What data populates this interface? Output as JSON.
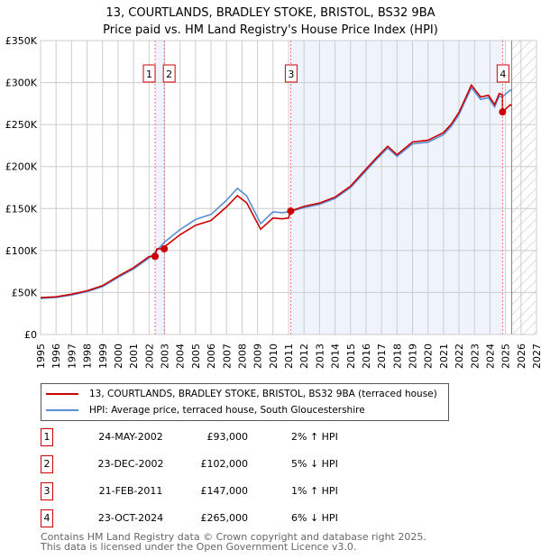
{
  "title": "13, COURTLANDS, BRADLEY STOKE, BRISTOL, BS32 9BA",
  "subtitle": "Price paid vs. HM Land Registry's House Price Index (HPI)",
  "chart_data": {
    "type": "line",
    "title": "13, COURTLANDS, BRADLEY STOKE, BRISTOL, BS32 9BA",
    "xlim": [
      1995,
      2027
    ],
    "ylim": [
      0,
      350000
    ],
    "yticks": [
      {
        "v": 0,
        "label": "£0"
      },
      {
        "v": 50000,
        "label": "£50K"
      },
      {
        "v": 100000,
        "label": "£100K"
      },
      {
        "v": 150000,
        "label": "£150K"
      },
      {
        "v": 200000,
        "label": "£200K"
      },
      {
        "v": 250000,
        "label": "£250K"
      },
      {
        "v": 300000,
        "label": "£300K"
      },
      {
        "v": 350000,
        "label": "£350K"
      }
    ],
    "xticks": [
      "1995",
      "1996",
      "1997",
      "1998",
      "1999",
      "2000",
      "2001",
      "2002",
      "2003",
      "2004",
      "2005",
      "2006",
      "2007",
      "2008",
      "2009",
      "2010",
      "2011",
      "2012",
      "2013",
      "2014",
      "2015",
      "2016",
      "2017",
      "2018",
      "2019",
      "2020",
      "2021",
      "2022",
      "2023",
      "2024",
      "2025",
      "2026",
      "2027"
    ],
    "colors": {
      "property": "#cc0000",
      "hpi": "#5b8fd4",
      "shade": "#eef3fc"
    },
    "hpi": [
      [
        1995,
        43000
      ],
      [
        1996,
        44000
      ],
      [
        1997,
        47000
      ],
      [
        1998,
        51000
      ],
      [
        1999,
        57000
      ],
      [
        2000,
        68000
      ],
      [
        2001,
        78000
      ],
      [
        2002,
        91000
      ],
      [
        2002.5,
        100000
      ],
      [
        2003,
        110000
      ],
      [
        2004,
        125000
      ],
      [
        2005,
        137000
      ],
      [
        2006,
        143000
      ],
      [
        2007,
        160000
      ],
      [
        2007.7,
        174000
      ],
      [
        2008.3,
        165000
      ],
      [
        2009.2,
        132000
      ],
      [
        2010,
        146000
      ],
      [
        2010.6,
        145000
      ],
      [
        2011,
        146000
      ],
      [
        2012,
        151000
      ],
      [
        2013,
        155000
      ],
      [
        2014,
        162000
      ],
      [
        2015,
        175000
      ],
      [
        2016,
        195000
      ],
      [
        2016.7,
        209000
      ],
      [
        2017.4,
        222000
      ],
      [
        2018,
        212000
      ],
      [
        2019,
        227000
      ],
      [
        2020,
        229000
      ],
      [
        2021,
        238000
      ],
      [
        2021.5,
        248000
      ],
      [
        2022,
        262000
      ],
      [
        2022.8,
        294000
      ],
      [
        2023.4,
        280000
      ],
      [
        2023.9,
        282000
      ],
      [
        2024.3,
        271000
      ],
      [
        2024.6,
        284000
      ],
      [
        2024.8,
        283000
      ],
      [
        2025.3,
        291000
      ],
      [
        2025.4,
        290000
      ]
    ],
    "property_factors": [
      [
        1995,
        1.02
      ],
      [
        2002.39,
        1.02
      ],
      [
        2002.98,
        0.95
      ],
      [
        2011.14,
        1.01
      ],
      [
        2024.81,
        0.94
      ]
    ],
    "sales": [
      {
        "n": "1",
        "year": 2002.39,
        "date": "24-MAY-2002",
        "price": 93000,
        "price_label": "£93,000",
        "hpi": "2% ↑ HPI"
      },
      {
        "n": "2",
        "year": 2002.98,
        "date": "23-DEC-2002",
        "price": 102000,
        "price_label": "£102,000",
        "hpi": "5% ↓ HPI"
      },
      {
        "n": "3",
        "year": 2011.14,
        "date": "21-FEB-2011",
        "price": 147000,
        "price_label": "£147,000",
        "hpi": "1% ↑ HPI"
      },
      {
        "n": "4",
        "year": 2024.81,
        "date": "23-OCT-2024",
        "price": 265000,
        "price_label": "£265,000",
        "hpi": "6% ↓ HPI"
      }
    ],
    "forecast_start": 2025.4,
    "legend": [
      "13, COURTLANDS, BRADLEY STOKE, BRISTOL, BS32 9BA (terraced house)",
      "HPI: Average price, terraced house, South Gloucestershire"
    ]
  },
  "footer": [
    "Contains HM Land Registry data © Crown copyright and database right 2025.",
    "This data is licensed under the Open Government Licence v3.0."
  ]
}
